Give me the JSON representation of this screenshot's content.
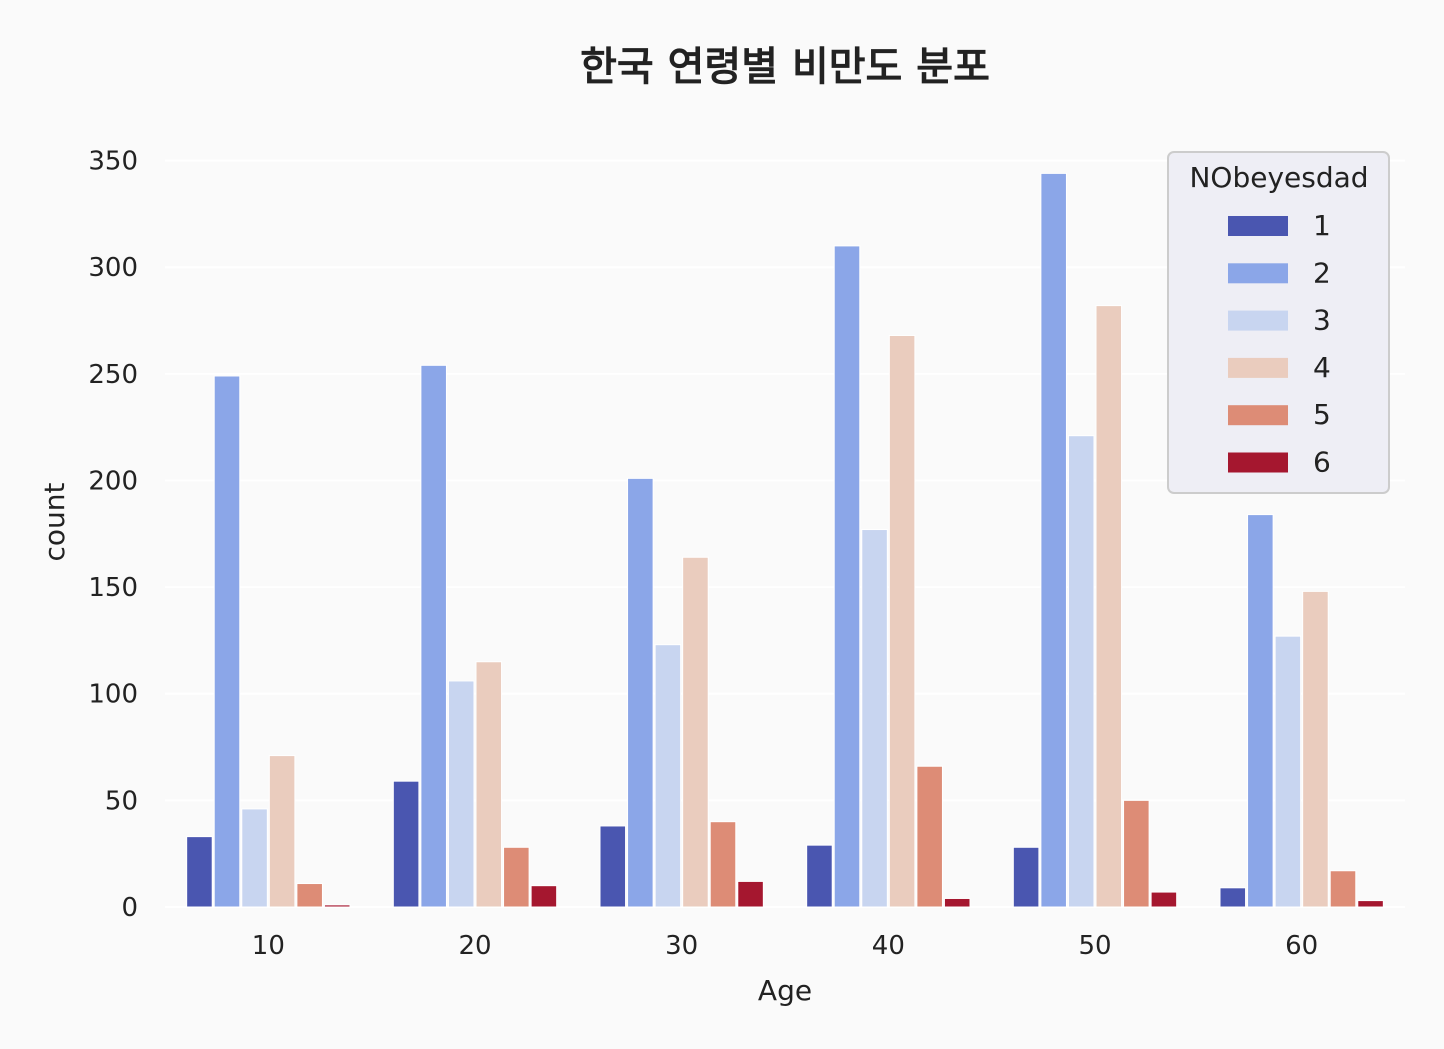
{
  "chart_data": {
    "type": "bar",
    "title": "한국 연령별 비만도 분포",
    "xlabel": "Age",
    "ylabel": "count",
    "categories": [
      "10",
      "20",
      "30",
      "40",
      "50",
      "60"
    ],
    "yticks": [
      "0",
      "50",
      "100",
      "150",
      "200",
      "250",
      "300",
      "350"
    ],
    "ylim": [
      0,
      362
    ],
    "grid": true,
    "legend": {
      "title": "NObeyesdad",
      "placement": "top-right"
    },
    "series": [
      {
        "name": "1",
        "color": "#4a56b0",
        "values": [
          33,
          59,
          38,
          29,
          28,
          9
        ]
      },
      {
        "name": "2",
        "color": "#8ba6e8",
        "values": [
          249,
          254,
          201,
          310,
          344,
          184
        ]
      },
      {
        "name": "3",
        "color": "#c8d5f0",
        "values": [
          46,
          106,
          123,
          177,
          221,
          127
        ]
      },
      {
        "name": "4",
        "color": "#eaccbe",
        "values": [
          71,
          115,
          164,
          268,
          282,
          148
        ]
      },
      {
        "name": "5",
        "color": "#dd8c76",
        "values": [
          11,
          28,
          40,
          66,
          50,
          17
        ]
      },
      {
        "name": "6",
        "color": "#a5172f",
        "values": [
          1,
          10,
          12,
          4,
          7,
          3
        ]
      }
    ]
  }
}
